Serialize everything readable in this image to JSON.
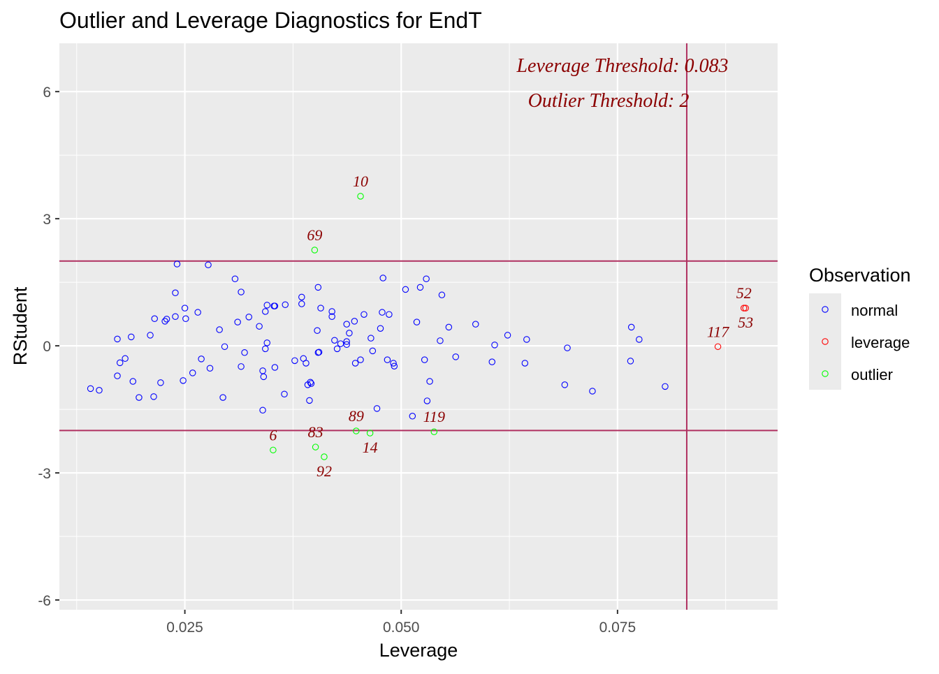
{
  "chart_data": {
    "type": "scatter",
    "title": "Outlier and Leverage Diagnostics for EndT",
    "xlabel": "Leverage",
    "ylabel": "RStudent",
    "xlim": [
      0.0105,
      0.0935
    ],
    "ylim": [
      -6.23,
      7.14
    ],
    "x_ticks": [
      0.025,
      0.05,
      0.075
    ],
    "x_tick_labels": [
      "0.025",
      "0.050",
      "0.075"
    ],
    "y_ticks": [
      -6,
      -3,
      0,
      3,
      6
    ],
    "y_tick_labels": [
      "-6",
      "-3",
      "0",
      "3",
      "6"
    ],
    "grid": true,
    "thresholds": {
      "leverage": 0.083,
      "outlier_upper": 2,
      "outlier_lower": -2,
      "leverage_label": "Leverage Threshold: 0.083",
      "outlier_label": "Outlier Threshold: 2",
      "line_color": "#b03060"
    },
    "legend": {
      "title": "Observation",
      "position": "right",
      "entries": [
        {
          "label": "normal",
          "color": "#0000ff"
        },
        {
          "label": "leverage",
          "color": "#ff0000"
        },
        {
          "label": "outlier",
          "color": "#00ff00"
        }
      ]
    },
    "label_color": "#8b0000",
    "series": [
      {
        "name": "normal",
        "color": "#0000ff",
        "points": [
          [
            0.0141,
            -1.01
          ],
          [
            0.0151,
            -1.05
          ],
          [
            0.0172,
            0.16
          ],
          [
            0.0172,
            -0.71
          ],
          [
            0.0175,
            -0.4
          ],
          [
            0.0181,
            -0.3
          ],
          [
            0.0188,
            0.21
          ],
          [
            0.019,
            -0.84
          ],
          [
            0.0197,
            -1.22
          ],
          [
            0.021,
            0.25
          ],
          [
            0.0214,
            -1.2
          ],
          [
            0.0215,
            0.64
          ],
          [
            0.0222,
            -0.87
          ],
          [
            0.0227,
            0.58
          ],
          [
            0.0229,
            0.63
          ],
          [
            0.0239,
            1.25
          ],
          [
            0.0239,
            0.69
          ],
          [
            0.0241,
            1.93
          ],
          [
            0.0248,
            -0.82
          ],
          [
            0.025,
            0.89
          ],
          [
            0.0251,
            0.64
          ],
          [
            0.0259,
            -0.64
          ],
          [
            0.0265,
            0.79
          ],
          [
            0.0269,
            -0.31
          ],
          [
            0.0277,
            1.91
          ],
          [
            0.0279,
            -0.53
          ],
          [
            0.029,
            0.38
          ],
          [
            0.0294,
            -1.22
          ],
          [
            0.0296,
            -0.02
          ],
          [
            0.0308,
            1.58
          ],
          [
            0.0311,
            0.56
          ],
          [
            0.0315,
            -0.49
          ],
          [
            0.0315,
            1.27
          ],
          [
            0.0319,
            -0.16
          ],
          [
            0.0324,
            0.68
          ],
          [
            0.0336,
            0.46
          ],
          [
            0.034,
            -1.52
          ],
          [
            0.034,
            -0.59
          ],
          [
            0.0341,
            -0.73
          ],
          [
            0.0343,
            -0.07
          ],
          [
            0.0343,
            0.81
          ],
          [
            0.0345,
            0.96
          ],
          [
            0.0345,
            0.07
          ],
          [
            0.0353,
            0.94
          ],
          [
            0.0354,
            0.94
          ],
          [
            0.0354,
            -0.51
          ],
          [
            0.0365,
            -1.14
          ],
          [
            0.0366,
            0.97
          ],
          [
            0.0377,
            -0.35
          ],
          [
            0.0385,
            1.15
          ],
          [
            0.0385,
            0.99
          ],
          [
            0.0387,
            -0.3
          ],
          [
            0.039,
            -0.41
          ],
          [
            0.0392,
            -0.92
          ],
          [
            0.0394,
            -1.29
          ],
          [
            0.0395,
            -0.86
          ],
          [
            0.0396,
            -0.89
          ],
          [
            0.0404,
            1.38
          ],
          [
            0.0403,
            0.36
          ],
          [
            0.0404,
            -0.16
          ],
          [
            0.0405,
            -0.15
          ],
          [
            0.0407,
            0.89
          ],
          [
            0.042,
            0.69
          ],
          [
            0.042,
            0.81
          ],
          [
            0.0423,
            0.13
          ],
          [
            0.0426,
            -0.07
          ],
          [
            0.043,
            0.05
          ],
          [
            0.0437,
            0.1
          ],
          [
            0.0437,
            0.51
          ],
          [
            0.0437,
            0.03
          ],
          [
            0.044,
            0.3
          ],
          [
            0.0446,
            0.58
          ],
          [
            0.0447,
            -0.41
          ],
          [
            0.0453,
            -0.33
          ],
          [
            0.0457,
            0.74
          ],
          [
            0.0465,
            0.18
          ],
          [
            0.0467,
            -0.12
          ],
          [
            0.0472,
            -1.48
          ],
          [
            0.0476,
            0.41
          ],
          [
            0.0478,
            0.79
          ],
          [
            0.0479,
            1.6
          ],
          [
            0.0484,
            -0.33
          ],
          [
            0.0486,
            0.74
          ],
          [
            0.0491,
            -0.41
          ],
          [
            0.0492,
            -0.48
          ],
          [
            0.0505,
            1.33
          ],
          [
            0.0513,
            -1.66
          ],
          [
            0.0518,
            0.56
          ],
          [
            0.0522,
            1.38
          ],
          [
            0.0527,
            -0.33
          ],
          [
            0.0529,
            1.58
          ],
          [
            0.053,
            -1.3
          ],
          [
            0.0533,
            -0.84
          ],
          [
            0.0545,
            0.12
          ],
          [
            0.0547,
            1.2
          ],
          [
            0.0555,
            0.44
          ],
          [
            0.0563,
            -0.26
          ],
          [
            0.0586,
            0.51
          ],
          [
            0.0605,
            -0.38
          ],
          [
            0.0608,
            0.02
          ],
          [
            0.0623,
            0.25
          ],
          [
            0.0643,
            -0.41
          ],
          [
            0.0645,
            0.15
          ],
          [
            0.0689,
            -0.92
          ],
          [
            0.0692,
            -0.05
          ],
          [
            0.0721,
            -1.07
          ],
          [
            0.0765,
            -0.36
          ],
          [
            0.0766,
            0.44
          ],
          [
            0.0775,
            0.15
          ],
          [
            0.0805,
            -0.96
          ]
        ]
      },
      {
        "name": "leverage",
        "color": "#ff0000",
        "points": [
          {
            "x": 0.0866,
            "y": -0.02,
            "label": "117"
          },
          {
            "x": 0.0896,
            "y": 0.89,
            "label": "52"
          },
          {
            "x": 0.0898,
            "y": 0.89,
            "label": "53"
          }
        ]
      },
      {
        "name": "outlier",
        "color": "#00ff00",
        "points": [
          {
            "x": 0.0453,
            "y": 3.53,
            "label": "10"
          },
          {
            "x": 0.04,
            "y": 2.26,
            "label": "69"
          },
          {
            "x": 0.0352,
            "y": -2.46,
            "label": "6"
          },
          {
            "x": 0.0401,
            "y": -2.39,
            "label": "83"
          },
          {
            "x": 0.0411,
            "y": -2.62,
            "label": "92"
          },
          {
            "x": 0.0448,
            "y": -2.01,
            "label": "89"
          },
          {
            "x": 0.0464,
            "y": -2.06,
            "label": "14"
          },
          {
            "x": 0.0538,
            "y": -2.03,
            "label": "119"
          }
        ]
      }
    ]
  }
}
